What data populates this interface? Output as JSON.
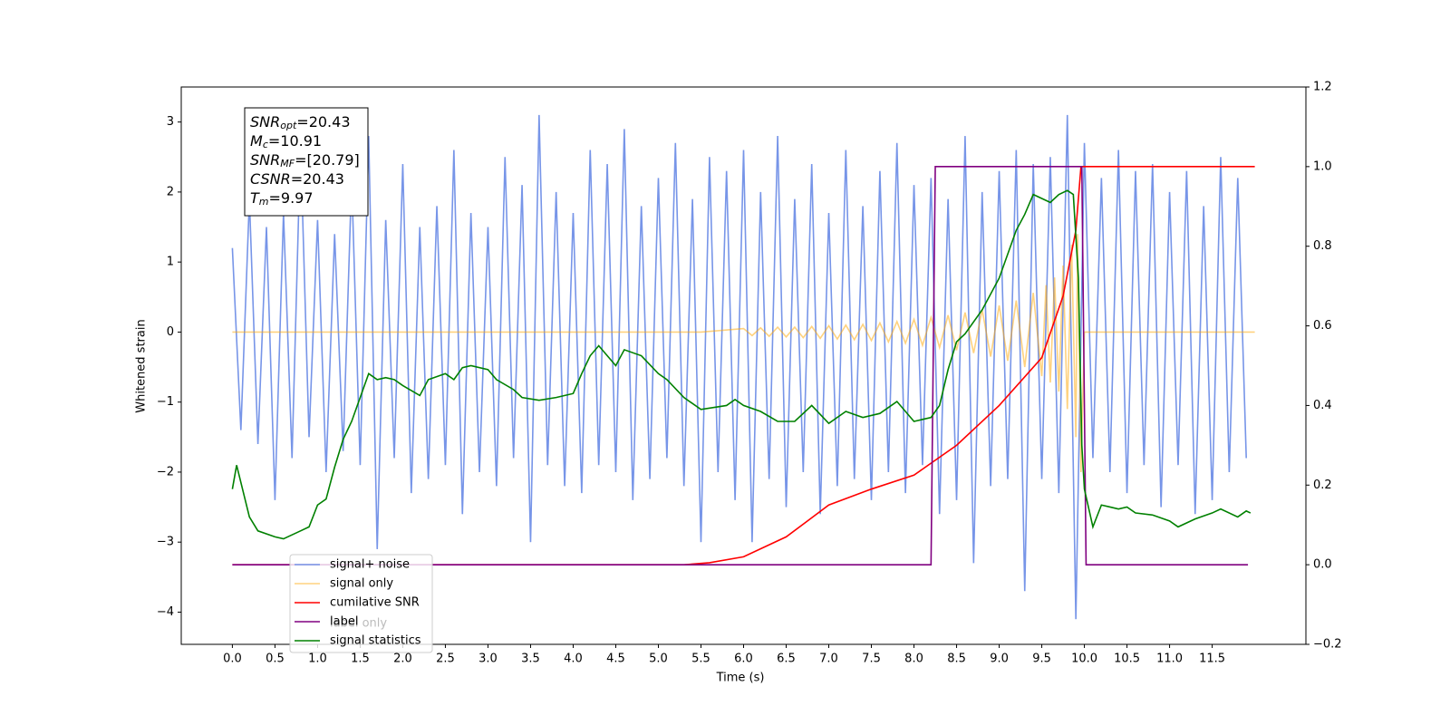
{
  "chart_data": {
    "type": "line",
    "xlabel": "Time (s)",
    "ylabel": "Whitened strain",
    "xlim": [
      -0.6,
      12.6
    ],
    "ylim": [
      -4.46,
      3.5
    ],
    "y2lim": [
      -0.2,
      1.2
    ],
    "xticks": [
      {
        "value": 0,
        "label": "0.0"
      },
      {
        "value": 0.5,
        "label": "0.5"
      },
      {
        "value": 1,
        "label": "1.0"
      },
      {
        "value": 1.5,
        "label": "1.5"
      },
      {
        "value": 2,
        "label": "2.0"
      },
      {
        "value": 2.5,
        "label": "2.5"
      },
      {
        "value": 3,
        "label": "3.0"
      },
      {
        "value": 3.5,
        "label": "3.5"
      },
      {
        "value": 4,
        "label": "4.0"
      },
      {
        "value": 4.5,
        "label": "4.5"
      },
      {
        "value": 5,
        "label": "5.0"
      },
      {
        "value": 5.5,
        "label": "5.5"
      },
      {
        "value": 6,
        "label": "6.0"
      },
      {
        "value": 6.5,
        "label": "6.5"
      },
      {
        "value": 7,
        "label": "7.0"
      },
      {
        "value": 7.5,
        "label": "7.5"
      },
      {
        "value": 8,
        "label": "8.0"
      },
      {
        "value": 8.5,
        "label": "8.5"
      },
      {
        "value": 9,
        "label": "9.0"
      },
      {
        "value": 9.5,
        "label": "9.5"
      },
      {
        "value": 10,
        "label": "10.0"
      },
      {
        "value": 10.5,
        "label": "10.5"
      },
      {
        "value": 11,
        "label": "11.0"
      },
      {
        "value": 11.5,
        "label": "11.5"
      }
    ],
    "yticks": [
      {
        "value": -4,
        "label": "−4"
      },
      {
        "value": -3,
        "label": "−3"
      },
      {
        "value": -2,
        "label": "−2"
      },
      {
        "value": -1,
        "label": "−1"
      },
      0,
      1,
      2,
      3
    ],
    "y2ticks": [
      {
        "value": -0.2,
        "label": "−0.2"
      },
      {
        "value": 0,
        "label": "0.0"
      },
      {
        "value": 0.2,
        "label": "0.2"
      },
      {
        "value": 0.4,
        "label": "0.4"
      },
      {
        "value": 0.6,
        "label": "0.6"
      },
      {
        "value": 0.8,
        "label": "0.8"
      },
      {
        "value": 1,
        "label": "1.0"
      },
      {
        "value": 1.2,
        "label": "1.2"
      }
    ],
    "stats_box": [
      {
        "symbol": "SNR",
        "subscript": "opt",
        "text": "=20.43"
      },
      {
        "symbol": "M",
        "subscript": "c",
        "text": "=10.91"
      },
      {
        "symbol": "SNR",
        "subscript": "MF",
        "text": "=[20.79]"
      },
      {
        "symbol": "CSNR",
        "text": "=20.43"
      },
      {
        "symbol": "T",
        "subscript": "m",
        "text": "=9.97"
      }
    ],
    "legend_ghost": "label only",
    "series": [
      {
        "name": "signal+ noise",
        "color": "#7795e8",
        "alpha": 1,
        "x": [
          0,
          0.1,
          0.2,
          0.3,
          0.4,
          0.5,
          0.6,
          0.7,
          0.8,
          0.9,
          1,
          1.1,
          1.2,
          1.3,
          1.4,
          1.5,
          1.6,
          1.7,
          1.8,
          1.9,
          2,
          2.1,
          2.2,
          2.3,
          2.4,
          2.5,
          2.6,
          2.7,
          2.8,
          2.9,
          3,
          3.1,
          3.2,
          3.3,
          3.4,
          3.5,
          3.6,
          3.7,
          3.8,
          3.9,
          4,
          4.1,
          4.2,
          4.3,
          4.4,
          4.5,
          4.6,
          4.7,
          4.8,
          4.9,
          5,
          5.1,
          5.2,
          5.3,
          5.4,
          5.5,
          5.6,
          5.7,
          5.8,
          5.9,
          6,
          6.1,
          6.2,
          6.3,
          6.4,
          6.5,
          6.6,
          6.7,
          6.8,
          6.9,
          7,
          7.1,
          7.2,
          7.3,
          7.4,
          7.5,
          7.6,
          7.7,
          7.8,
          7.9,
          8,
          8.1,
          8.2,
          8.3,
          8.4,
          8.5,
          8.6,
          8.7,
          8.8,
          8.9,
          9,
          9.1,
          9.2,
          9.3,
          9.4,
          9.5,
          9.6,
          9.7,
          9.8,
          9.9,
          10,
          10.1,
          10.2,
          10.3,
          10.4,
          10.5,
          10.6,
          10.7,
          10.8,
          10.9,
          11,
          11.1,
          11.2,
          11.3,
          11.4,
          11.5,
          11.6,
          11.7,
          11.8,
          11.9
        ],
        "values": [
          1.2,
          -1.4,
          1.9,
          -1.6,
          1.5,
          -2.4,
          1.7,
          -1.8,
          2.7,
          -1.5,
          1.6,
          -2.0,
          1.4,
          -1.7,
          2.2,
          -1.9,
          2.8,
          -3.1,
          1.6,
          -1.8,
          2.4,
          -2.3,
          1.5,
          -2.1,
          1.8,
          -1.9,
          2.6,
          -2.6,
          1.7,
          -2.0,
          1.5,
          -2.2,
          2.5,
          -1.8,
          2.1,
          -3.0,
          3.1,
          -1.9,
          2.0,
          -2.2,
          1.7,
          -2.3,
          2.6,
          -1.9,
          2.4,
          -2.0,
          2.9,
          -2.4,
          1.8,
          -2.1,
          2.2,
          -1.8,
          2.7,
          -2.2,
          1.9,
          -3.0,
          2.5,
          -2.0,
          2.3,
          -2.4,
          2.6,
          -3.0,
          2.0,
          -2.1,
          2.8,
          -2.5,
          1.9,
          -2.0,
          2.4,
          -2.6,
          1.7,
          -2.2,
          2.6,
          -2.1,
          1.8,
          -2.4,
          2.3,
          -2.0,
          2.7,
          -2.3,
          2.1,
          -1.9,
          2.2,
          -2.6,
          1.9,
          -2.4,
          2.8,
          -3.3,
          2.0,
          -2.2,
          2.3,
          -2.1,
          2.6,
          -3.7,
          2.4,
          -2.1,
          2.5,
          -2.3,
          3.1,
          -4.1,
          2.7,
          -1.8,
          2.2,
          -2.0,
          2.6,
          -2.3,
          2.3,
          -1.9,
          2.4,
          -2.5,
          2.0,
          -1.9,
          2.3,
          -2.6,
          1.8,
          -2.4,
          2.5,
          -2.0,
          2.2,
          -1.8
        ]
      },
      {
        "name": "signal only",
        "color": "#ffa500",
        "alpha": 0.5,
        "x": [
          0,
          5.5,
          6,
          6.1,
          6.2,
          6.3,
          6.4,
          6.5,
          6.6,
          6.7,
          6.8,
          6.9,
          7,
          7.1,
          7.2,
          7.3,
          7.4,
          7.5,
          7.6,
          7.7,
          7.8,
          7.9,
          8,
          8.1,
          8.2,
          8.3,
          8.4,
          8.5,
          8.6,
          8.7,
          8.8,
          8.9,
          9,
          9.1,
          9.2,
          9.3,
          9.4,
          9.5,
          9.55,
          9.6,
          9.65,
          9.7,
          9.75,
          9.8,
          9.85,
          9.9,
          9.92,
          9.96,
          10,
          12
        ],
        "values": [
          0,
          0,
          0.05,
          -0.05,
          0.06,
          -0.06,
          0.07,
          -0.07,
          0.07,
          -0.08,
          0.08,
          -0.09,
          0.09,
          -0.1,
          0.1,
          -0.11,
          0.11,
          -0.12,
          0.13,
          -0.14,
          0.15,
          -0.16,
          0.18,
          -0.19,
          0.21,
          -0.22,
          0.24,
          -0.26,
          0.28,
          -0.3,
          0.32,
          -0.35,
          0.38,
          -0.41,
          0.45,
          -0.5,
          0.56,
          -0.63,
          0.67,
          -0.72,
          0.78,
          -0.85,
          0.95,
          -1.1,
          1.25,
          -1.5,
          1.4,
          -2.0,
          0,
          0
        ]
      },
      {
        "name": "cumilative SNR",
        "color": "#ff0000",
        "axis": "y2",
        "x": [
          0,
          5.3,
          5.6,
          6,
          6.5,
          7,
          7.5,
          8,
          8.5,
          9,
          9.5,
          9.75,
          9.9,
          9.96,
          12
        ],
        "values": [
          0,
          0,
          0.005,
          0.02,
          0.07,
          0.15,
          0.19,
          0.225,
          0.3,
          0.4,
          0.52,
          0.675,
          0.84,
          1,
          1
        ]
      },
      {
        "name": "label",
        "color": "#800080",
        "axis": "y2",
        "x": [
          0,
          8.2,
          8.25,
          9.97,
          10.02,
          11.92
        ],
        "values": [
          0,
          0,
          1,
          1,
          0,
          0
        ]
      },
      {
        "name": "signal statistics",
        "color": "#008000",
        "axis": "y2",
        "x": [
          0,
          0.05,
          0.2,
          0.3,
          0.5,
          0.6,
          0.8,
          0.9,
          1,
          1.1,
          1.2,
          1.3,
          1.4,
          1.5,
          1.6,
          1.7,
          1.8,
          1.9,
          2,
          2.2,
          2.3,
          2.5,
          2.6,
          2.7,
          2.8,
          3,
          3.1,
          3.3,
          3.4,
          3.6,
          3.8,
          4,
          4.1,
          4.2,
          4.3,
          4.4,
          4.5,
          4.6,
          4.8,
          5,
          5.1,
          5.3,
          5.5,
          5.8,
          5.9,
          6,
          6.2,
          6.4,
          6.6,
          6.8,
          7,
          7.2,
          7.4,
          7.6,
          7.8,
          8,
          8.2,
          8.3,
          8.4,
          8.5,
          8.6,
          8.8,
          9,
          9.2,
          9.3,
          9.4,
          9.5,
          9.6,
          9.7,
          9.8,
          9.87,
          9.93,
          9.97,
          10,
          10.1,
          10.2,
          10.3,
          10.4,
          10.5,
          10.6,
          10.8,
          11,
          11.1,
          11.3,
          11.5,
          11.6,
          11.8,
          11.9,
          11.95
        ],
        "values": [
          0.19,
          0.25,
          0.12,
          0.085,
          0.07,
          0.065,
          0.085,
          0.095,
          0.15,
          0.165,
          0.245,
          0.315,
          0.36,
          0.42,
          0.48,
          0.465,
          0.47,
          0.465,
          0.45,
          0.425,
          0.465,
          0.48,
          0.465,
          0.495,
          0.5,
          0.49,
          0.465,
          0.44,
          0.42,
          0.413,
          0.42,
          0.43,
          0.48,
          0.525,
          0.55,
          0.525,
          0.5,
          0.54,
          0.525,
          0.48,
          0.465,
          0.42,
          0.39,
          0.4,
          0.415,
          0.4,
          0.385,
          0.36,
          0.36,
          0.4,
          0.355,
          0.385,
          0.37,
          0.38,
          0.41,
          0.36,
          0.37,
          0.4,
          0.49,
          0.56,
          0.58,
          0.64,
          0.72,
          0.84,
          0.88,
          0.93,
          0.92,
          0.91,
          0.93,
          0.94,
          0.93,
          0.72,
          0.3,
          0.19,
          0.095,
          0.15,
          0.145,
          0.14,
          0.145,
          0.13,
          0.125,
          0.11,
          0.095,
          0.115,
          0.13,
          0.14,
          0.12,
          0.135,
          0.13
        ]
      }
    ]
  }
}
